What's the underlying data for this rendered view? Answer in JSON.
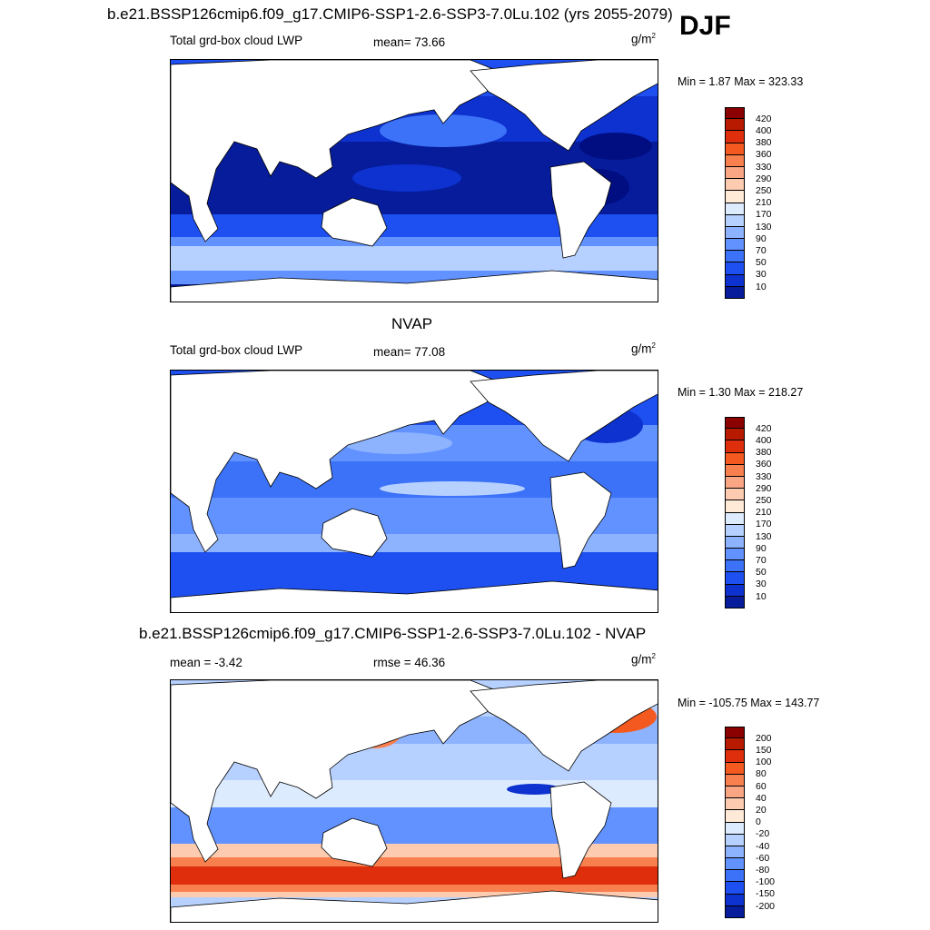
{
  "season": "DJF",
  "colors": {
    "pos": [
      "#8B0000",
      "#B81A00",
      "#DF2E0B",
      "#F45A20",
      "#F87F4E",
      "#FAA685",
      "#FDCBB0",
      "#FFE9D7"
    ],
    "neg": [
      "#DDEBFF",
      "#B6D1FF",
      "#8DB3FF",
      "#6192FF",
      "#3C72F7",
      "#1E4FF0",
      "#0D32CF",
      "#061C9B",
      "#000E82"
    ],
    "land": "#ffffff",
    "coast": "#000000"
  },
  "panels": [
    {
      "title": "b.e21.BSSP126cmip6.f09_g17.CMIP6-SSP1-2.6-SSP3-7.0Lu.102 (yrs 2055-2079)",
      "left_label": "Total grd-box cloud LWP",
      "center_label": "mean=  73.66",
      "units": "g/m",
      "units_sup": "2",
      "minmax": "Min =   1.87 Max = 323.33"
    },
    {
      "title": "NVAP",
      "left_label": "Total grd-box cloud LWP",
      "center_label": "mean=  77.08",
      "units": "g/m",
      "units_sup": "2",
      "minmax": "Min =   1.30 Max = 218.27"
    },
    {
      "title": "b.e21.BSSP126cmip6.f09_g17.CMIP6-SSP1-2.6-SSP3-7.0Lu.102 - NVAP",
      "left_label": "mean =  -3.42",
      "center_label": "rmse =  46.36",
      "units": "g/m",
      "units_sup": "2",
      "minmax": "Min = -105.75 Max = 143.77"
    }
  ],
  "chart_data": [
    {
      "type": "heatmap",
      "title": "b.e21.BSSP126cmip6.f09_g17.CMIP6-SSP1-2.6-SSP3-7.0Lu.102 (yrs 2055-2079)",
      "variable": "Total grd-box cloud LWP",
      "units": "g/m2",
      "mean": 73.66,
      "min": 1.87,
      "max": 323.33,
      "colorbar_levels": [
        10,
        30,
        50,
        70,
        90,
        130,
        170,
        210,
        250,
        290,
        330,
        360,
        380,
        400,
        420
      ]
    },
    {
      "type": "heatmap",
      "title": "NVAP",
      "variable": "Total grd-box cloud LWP",
      "units": "g/m2",
      "mean": 77.08,
      "min": 1.3,
      "max": 218.27,
      "colorbar_levels": [
        10,
        30,
        50,
        70,
        90,
        130,
        170,
        210,
        250,
        290,
        330,
        360,
        380,
        400,
        420
      ]
    },
    {
      "type": "heatmap",
      "title": "b.e21.BSSP126cmip6.f09_g17.CMIP6-SSP1-2.6-SSP3-7.0Lu.102 - NVAP",
      "units": "g/m2",
      "mean": -3.42,
      "rmse": 46.36,
      "min": -105.75,
      "max": 143.77,
      "colorbar_levels": [
        -200,
        -150,
        -100,
        -80,
        -60,
        -40,
        -20,
        0,
        20,
        40,
        60,
        80,
        100,
        150,
        200
      ]
    }
  ]
}
